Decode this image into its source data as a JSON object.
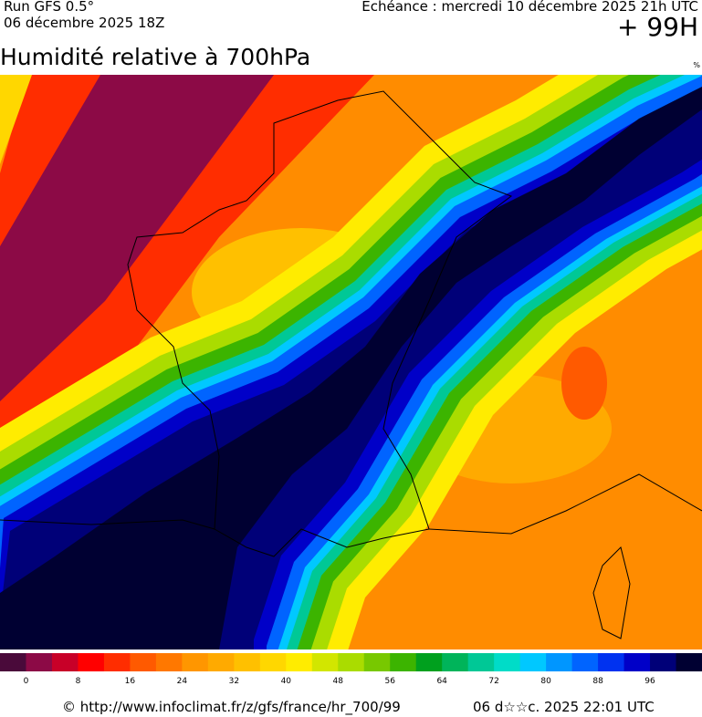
{
  "header": {
    "run": "Run GFS 0.5°",
    "run_date": "06 décembre 2025 18Z",
    "valid": "Echéance : mercredi 10 décembre 2025 21h UTC",
    "lead": "+ 99H",
    "title": "Humidité relative à 700hPa",
    "unit": "%"
  },
  "legend": {
    "labels": [
      0,
      8,
      16,
      24,
      32,
      40,
      48,
      56,
      64,
      72,
      80,
      88,
      96
    ],
    "colors": [
      "#4a0a3a",
      "#8c0a46",
      "#c80028",
      "#ff0000",
      "#ff2d00",
      "#ff5a00",
      "#ff7800",
      "#ff9600",
      "#ffaa00",
      "#ffc000",
      "#ffd700",
      "#ffec00",
      "#d2e600",
      "#aadc00",
      "#78c800",
      "#3cb400",
      "#00a01e",
      "#00b45a",
      "#00c896",
      "#00dcc8",
      "#00c8ff",
      "#0096ff",
      "#0064ff",
      "#0032f0",
      "#0000c8",
      "#000078",
      "#000032"
    ]
  },
  "footer": {
    "source": "© http://www.infoclimat.fr/z/gfs/france/hr_700/99",
    "generated": "06 d☆☆c. 2025 22:01 UTC"
  }
}
